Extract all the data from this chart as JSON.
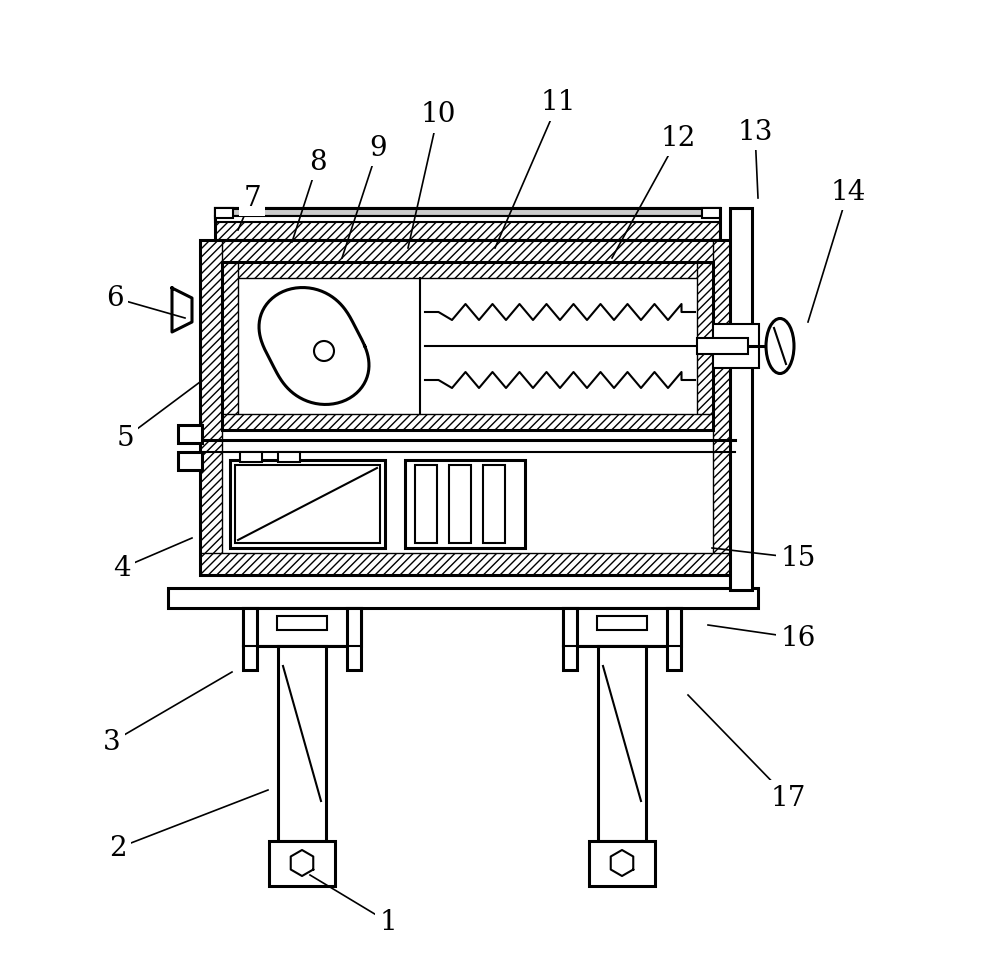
{
  "bg_color": "#ffffff",
  "line_color": "#000000",
  "fig_width": 10.0,
  "fig_height": 9.61,
  "lw": 1.5,
  "lw2": 2.2,
  "label_fontsize": 20,
  "annotations": [
    [
      1,
      388,
      922,
      310,
      875
    ],
    [
      2,
      118,
      848,
      268,
      790
    ],
    [
      3,
      112,
      742,
      232,
      672
    ],
    [
      4,
      122,
      568,
      192,
      538
    ],
    [
      5,
      125,
      438,
      200,
      382
    ],
    [
      6,
      115,
      298,
      185,
      318
    ],
    [
      7,
      252,
      198,
      238,
      230
    ],
    [
      8,
      318,
      162,
      292,
      242
    ],
    [
      9,
      378,
      148,
      342,
      258
    ],
    [
      10,
      438,
      115,
      408,
      248
    ],
    [
      11,
      558,
      103,
      495,
      248
    ],
    [
      12,
      678,
      138,
      612,
      258
    ],
    [
      13,
      755,
      132,
      758,
      198
    ],
    [
      14,
      848,
      192,
      808,
      322
    ],
    [
      15,
      798,
      558,
      712,
      548
    ],
    [
      16,
      798,
      638,
      708,
      625
    ],
    [
      17,
      788,
      798,
      688,
      695
    ]
  ]
}
